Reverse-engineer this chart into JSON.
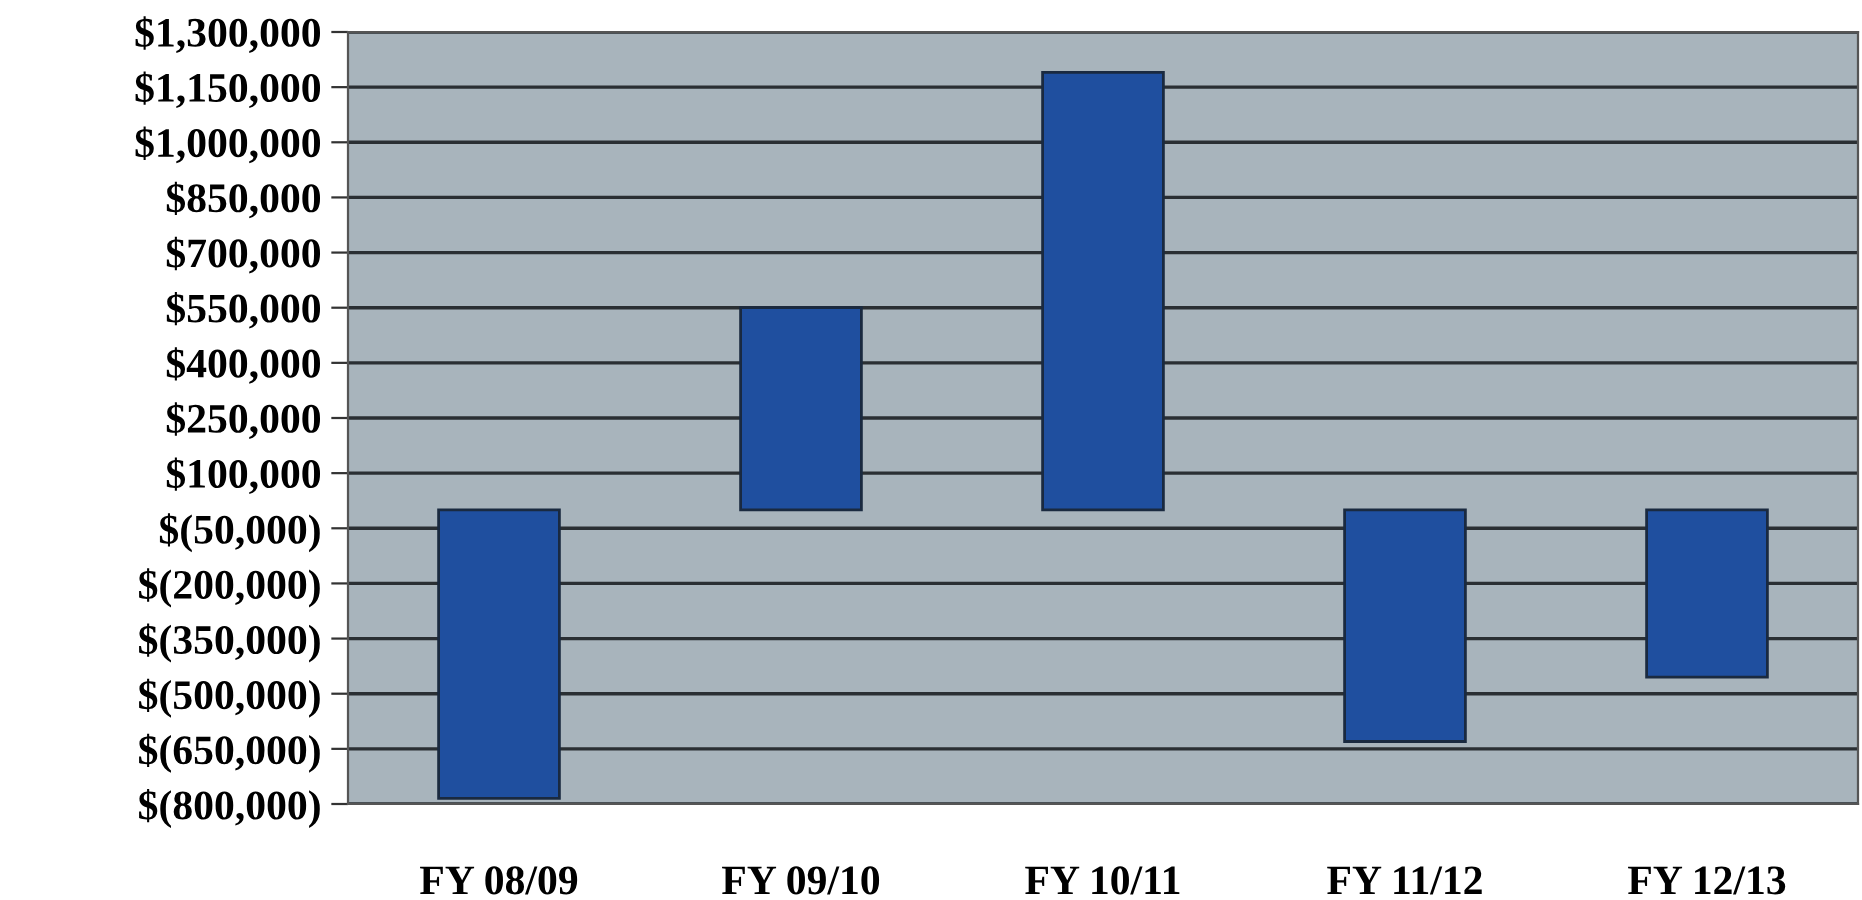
{
  "chart_data": {
    "type": "bar",
    "categories": [
      "FY 08/09",
      "FY 09/10",
      "FY 10/11",
      "FY 11/12",
      "FY 12/13"
    ],
    "values": [
      -785000,
      550000,
      1190000,
      -630000,
      -455000
    ],
    "color": "#1f4f9f",
    "ylim": [
      -800000,
      1300000
    ],
    "yticks": [
      {
        "value": 1300000,
        "label": "$1,300,000"
      },
      {
        "value": 1150000,
        "label": "$1,150,000"
      },
      {
        "value": 1000000,
        "label": "$1,000,000"
      },
      {
        "value": 850000,
        "label": "$850,000"
      },
      {
        "value": 700000,
        "label": "$700,000"
      },
      {
        "value": 550000,
        "label": "$550,000"
      },
      {
        "value": 400000,
        "label": "$400,000"
      },
      {
        "value": 250000,
        "label": "$250,000"
      },
      {
        "value": 100000,
        "label": "$100,000"
      },
      {
        "value": -50000,
        "label": "$(50,000)"
      },
      {
        "value": -200000,
        "label": "$(200,000)"
      },
      {
        "value": -350000,
        "label": "$(350,000)"
      },
      {
        "value": -500000,
        "label": "$(500,000)"
      },
      {
        "value": -650000,
        "label": "$(650,000)"
      },
      {
        "value": -800000,
        "label": "$(800,000)"
      }
    ],
    "grid": "y"
  }
}
